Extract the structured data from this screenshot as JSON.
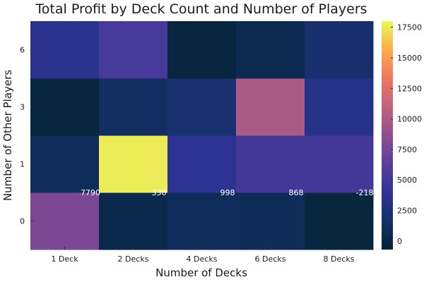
{
  "chart_data": {
    "type": "heatmap",
    "title": "Total Profit by Deck Count and Number of Players",
    "xlabel": "Number of Decks",
    "ylabel": "Number of Other Players",
    "x_categories": [
      "1 Deck",
      "2 Decks",
      "4 Decks",
      "6 Decks",
      "8 Decks"
    ],
    "y_categories": [
      "0",
      "1",
      "3",
      "6"
    ],
    "values": [
      [
        7790,
        330,
        998,
        868,
        -218
      ],
      [
        1000,
        17600,
        3800,
        5000,
        5000
      ],
      [
        -200,
        1200,
        2000,
        10000,
        3200
      ],
      [
        3600,
        5200,
        -200,
        600,
        1800
      ]
    ],
    "data_labels": [
      {
        "x": "1 Deck",
        "text": "7790"
      },
      {
        "x": "2 Decks",
        "text": "330"
      },
      {
        "x": "4 Decks",
        "text": "998"
      },
      {
        "x": "6 Decks",
        "text": "868"
      },
      {
        "x": "8 Decks",
        "text": "-218"
      }
    ],
    "colorbar": {
      "min": -700,
      "max": 18000,
      "ticks": [
        "0",
        "2500",
        "5000",
        "7500",
        "10000",
        "12500",
        "15000",
        "17500"
      ],
      "tick_values": [
        0,
        2500,
        5000,
        7500,
        10000,
        12500,
        15000,
        17500
      ]
    },
    "colormap": [
      "#042333",
      "#15306a",
      "#2f3396",
      "#5c3e9b",
      "#8d4f8e",
      "#c0637e",
      "#ee7762",
      "#fbab4c",
      "#e8fa5b"
    ]
  }
}
